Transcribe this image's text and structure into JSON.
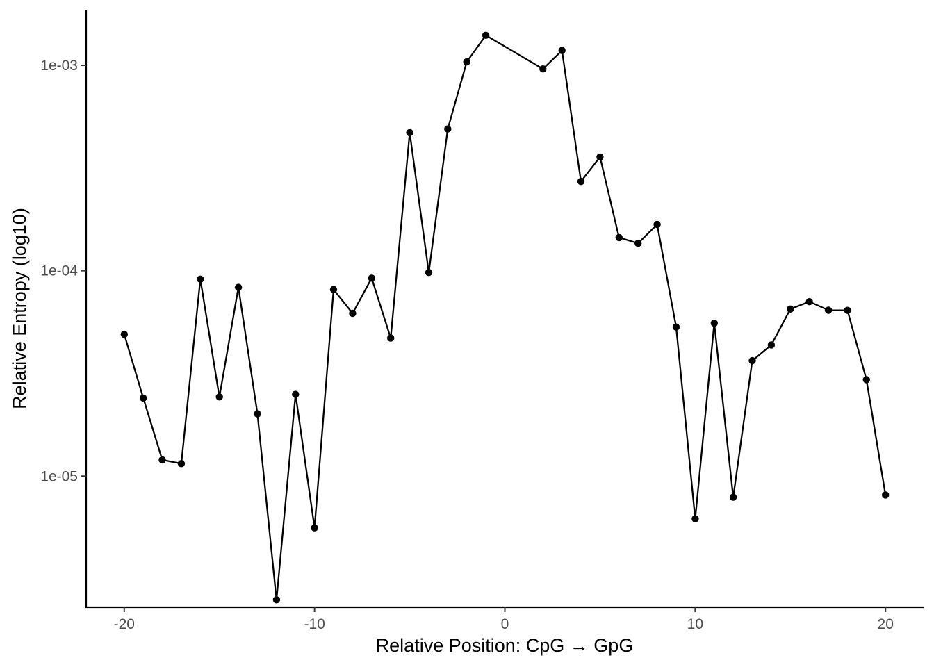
{
  "chart_data": {
    "type": "line",
    "xlabel": "Relative Position: CpG → GpG",
    "ylabel": "Relative Entropy (log10)",
    "y_scale": "log10",
    "x_ticks": [
      -20,
      -10,
      0,
      10,
      20
    ],
    "y_ticks": [
      {
        "value": 1e-05,
        "label": "1e-05"
      },
      {
        "value": 0.0001,
        "label": "1e-04"
      },
      {
        "value": 0.001,
        "label": "1e-03"
      }
    ],
    "xlim": [
      -22,
      22
    ],
    "ylim": [
      2.3e-06,
      0.00185
    ],
    "grid": false,
    "legend": "none",
    "color": "#000000",
    "x": [
      -20,
      -19,
      -18,
      -17,
      -16,
      -15,
      -14,
      -13,
      -12,
      -11,
      -10,
      -9,
      -8,
      -7,
      -6,
      -5,
      -4,
      -3,
      -2,
      -1,
      2,
      3,
      4,
      5,
      6,
      7,
      8,
      9,
      10,
      11,
      12,
      13,
      14,
      15,
      16,
      17,
      18,
      19,
      20
    ],
    "y": [
      4.9e-05,
      2.4e-05,
      1.2e-05,
      1.15e-05,
      9.1e-05,
      2.43e-05,
      8.3e-05,
      2.01e-05,
      2.5e-06,
      2.5e-05,
      5.6e-06,
      8.1e-05,
      6.2e-05,
      9.2e-05,
      4.7e-05,
      0.00047,
      9.8e-05,
      0.00049,
      0.00104,
      0.0014,
      0.00096,
      0.00118,
      0.000272,
      0.000358,
      0.000145,
      0.000136,
      0.000168,
      5.32e-05,
      6.2e-06,
      5.55e-05,
      7.9e-06,
      3.65e-05,
      4.35e-05,
      6.51e-05,
      7.07e-05,
      6.42e-05,
      6.41e-05,
      2.95e-05,
      8.1e-06
    ]
  }
}
